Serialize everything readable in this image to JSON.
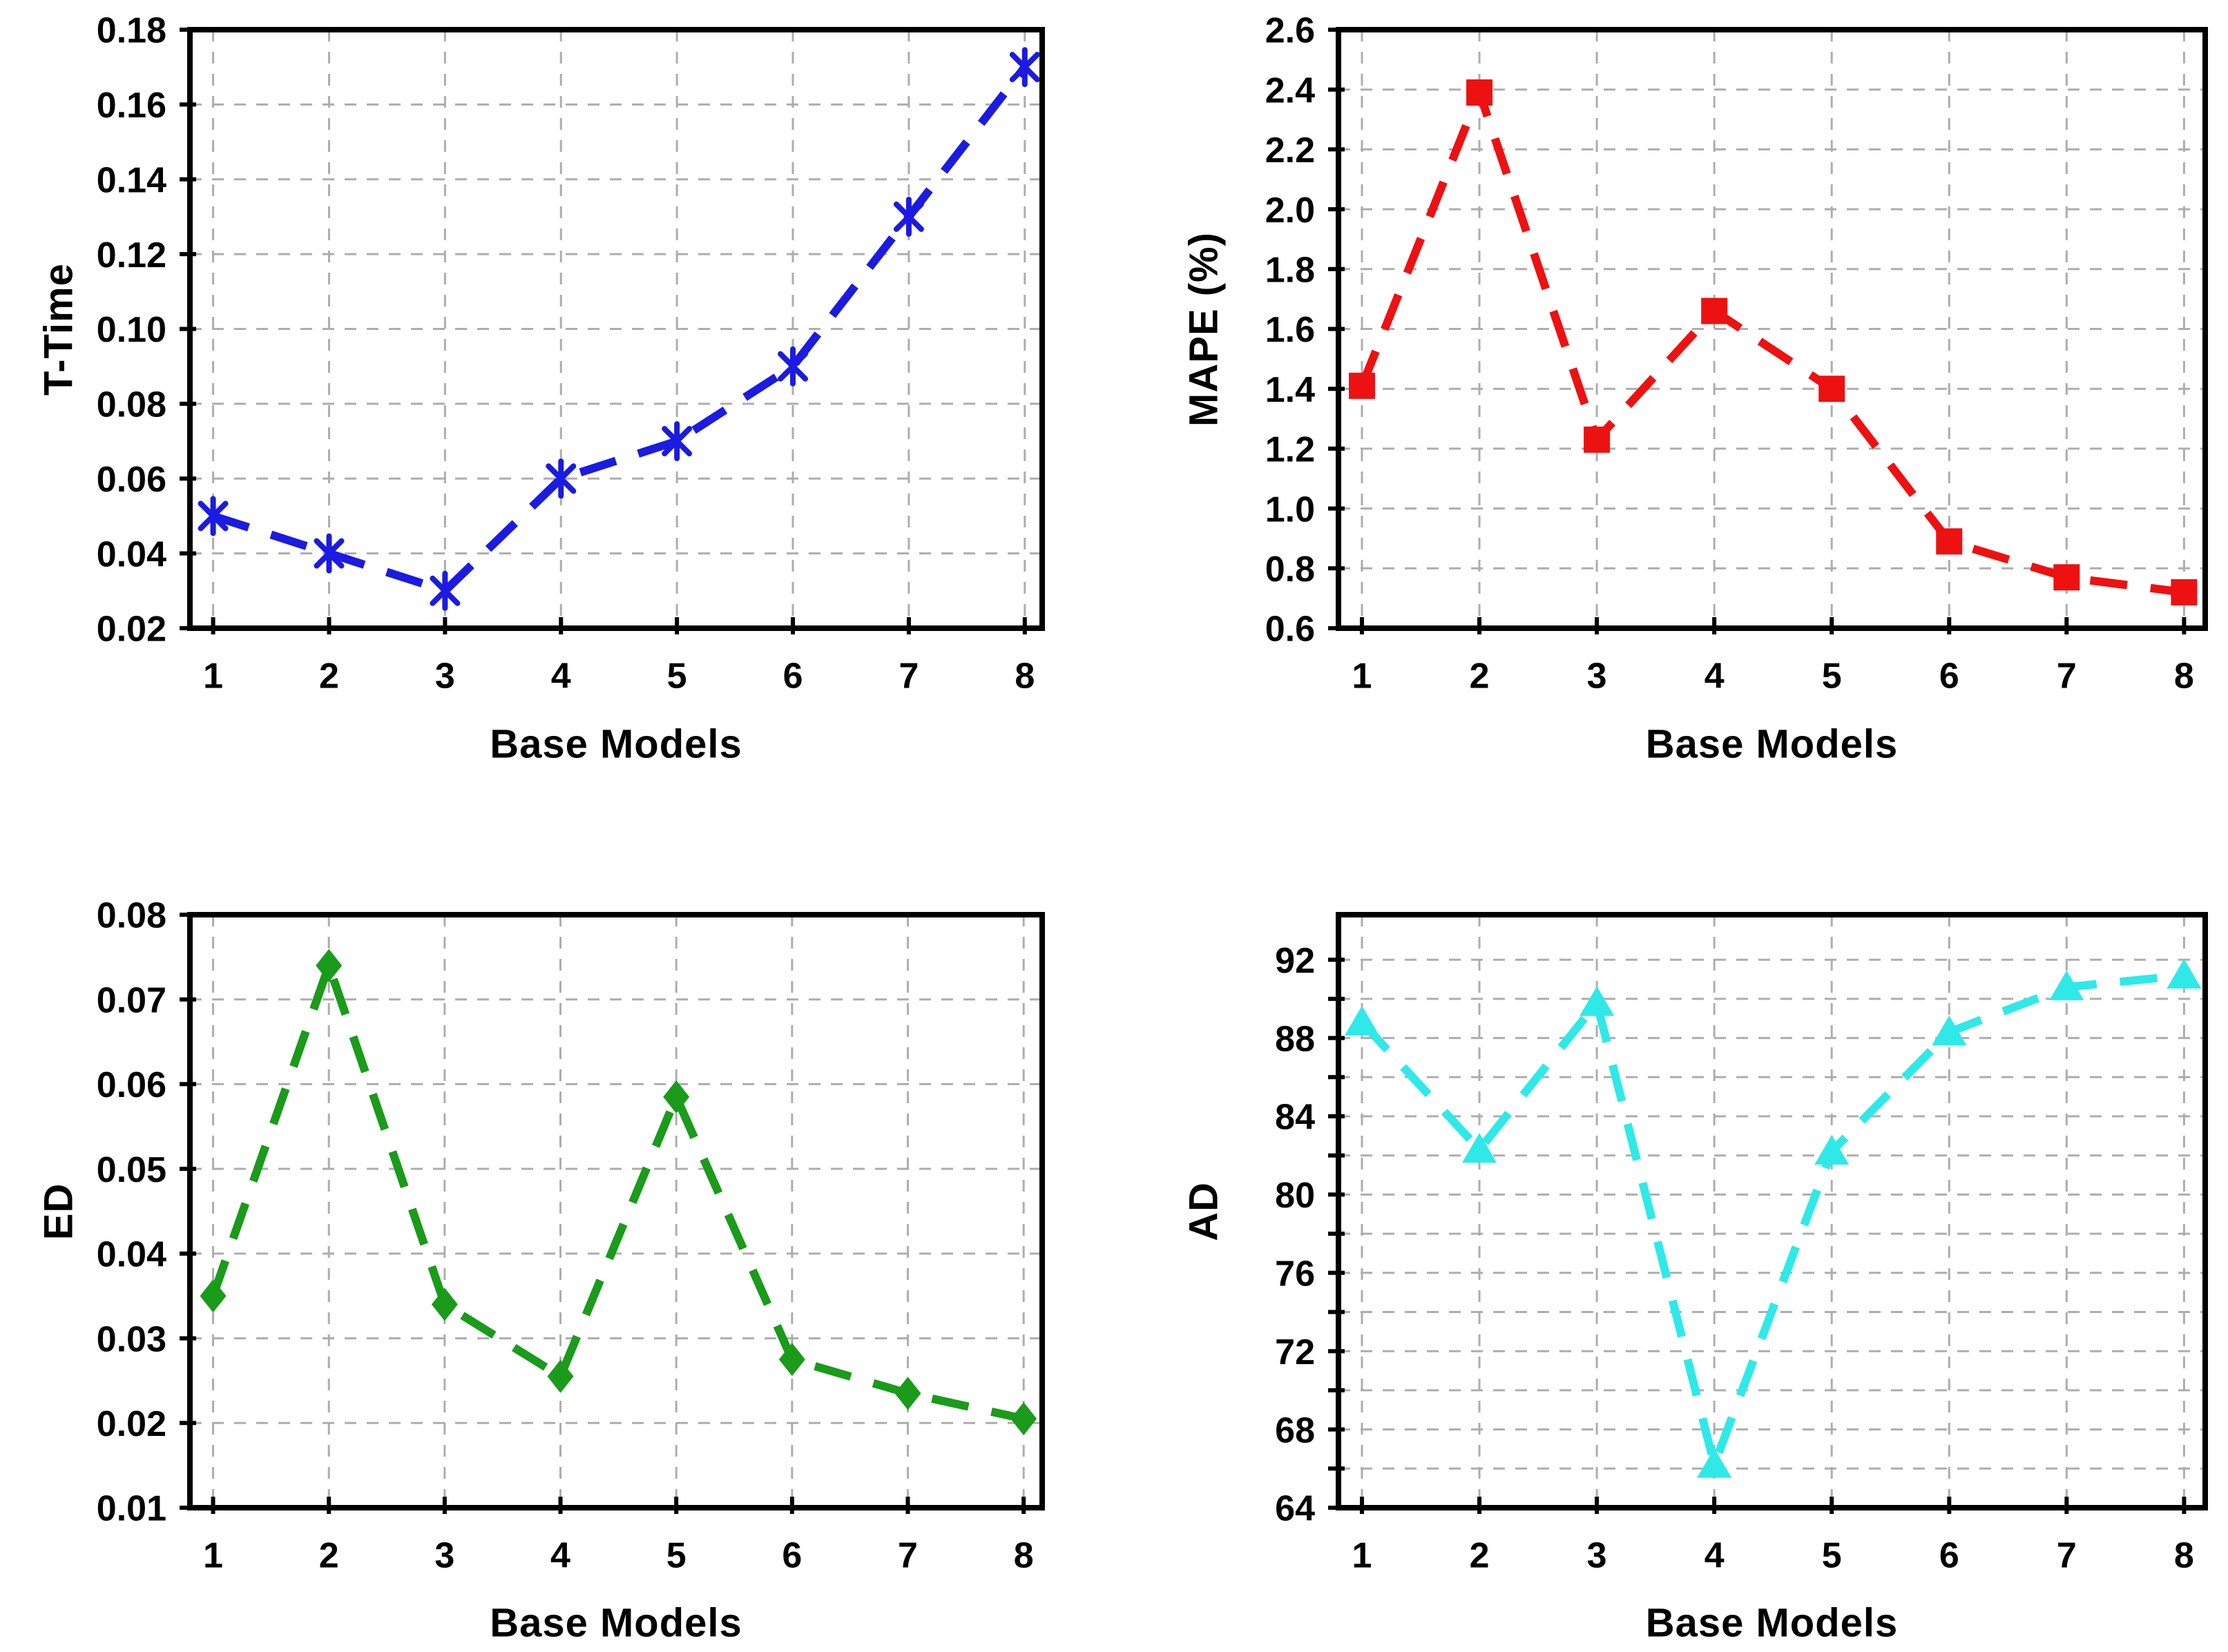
{
  "figure": {
    "background": "#ffffff",
    "grid_color": "#ADADAD",
    "box_color": "#000000",
    "text_color": "#000000"
  },
  "chart_data": [
    {
      "type": "line",
      "position": "top-left",
      "ylabel": "T-Time",
      "xlabel": "Base Models",
      "x": [
        1,
        2,
        3,
        4,
        5,
        6,
        7,
        8
      ],
      "values": [
        0.05,
        0.04,
        0.03,
        0.06,
        0.07,
        0.09,
        0.13,
        0.17
      ],
      "xlim": [
        0.8,
        8.15
      ],
      "ylim": [
        0.02,
        0.18
      ],
      "ytick_values": [
        0.02,
        0.04,
        0.06,
        0.08,
        0.1,
        0.12,
        0.14,
        0.16,
        0.18
      ],
      "ytick_labels": [
        "0.02",
        "0.04",
        "0.06",
        "0.08",
        "0.10",
        "0.12",
        "0.14",
        "0.16",
        "0.18"
      ],
      "grid_values": [
        0.04,
        0.06,
        0.08,
        0.1,
        0.12,
        0.14,
        0.16
      ],
      "xtick_labels": [
        "1",
        "2",
        "3",
        "4",
        "5",
        "6",
        "7",
        "8"
      ],
      "grid": true,
      "legend": null,
      "line_style": "dashed",
      "line_color": "#1B1BE1",
      "marker": "asterisk",
      "marker_color": "#1B1BE1"
    },
    {
      "type": "line",
      "position": "top-right",
      "ylabel": "MAPE (%)",
      "xlabel": "Base Models",
      "x": [
        1,
        2,
        3,
        4,
        5,
        6,
        7,
        8
      ],
      "values": [
        1.41,
        2.39,
        1.23,
        1.66,
        1.4,
        0.89,
        0.77,
        0.72
      ],
      "xlim": [
        0.8,
        8.18
      ],
      "ylim": [
        0.6,
        2.6
      ],
      "ytick_values": [
        0.6,
        0.8,
        1.0,
        1.2,
        1.4,
        1.6,
        1.8,
        2.0,
        2.2,
        2.4,
        2.6
      ],
      "ytick_labels": [
        "0.6",
        "0.8",
        "1.0",
        "1.2",
        "1.4",
        "1.6",
        "1.8",
        "2.0",
        "2.2",
        "2.4",
        "2.6"
      ],
      "grid_values": [
        0.8,
        1.0,
        1.2,
        1.4,
        1.6,
        1.8,
        2.0,
        2.2,
        2.4
      ],
      "xtick_labels": [
        "1",
        "2",
        "3",
        "4",
        "5",
        "6",
        "7",
        "8"
      ],
      "grid": true,
      "legend": null,
      "line_style": "dashed",
      "line_color": "#EE1111",
      "marker": "square",
      "marker_color": "#EE1111"
    },
    {
      "type": "line",
      "position": "bottom-left",
      "ylabel": "ED",
      "xlabel": "Base Models",
      "x": [
        1,
        2,
        3,
        4,
        5,
        6,
        7,
        8
      ],
      "values": [
        0.035,
        0.074,
        0.034,
        0.0255,
        0.0585,
        0.0275,
        0.0235,
        0.0205
      ],
      "xlim": [
        0.8,
        8.16
      ],
      "ylim": [
        0.01,
        0.08
      ],
      "ytick_values": [
        0.01,
        0.02,
        0.03,
        0.04,
        0.05,
        0.06,
        0.07,
        0.08
      ],
      "ytick_labels": [
        "0.01",
        "0.02",
        "0.03",
        "0.04",
        "0.05",
        "0.06",
        "0.07",
        "0.08"
      ],
      "grid_values": [
        0.02,
        0.03,
        0.04,
        0.05,
        0.06,
        0.07
      ],
      "xtick_labels": [
        "1",
        "2",
        "3",
        "4",
        "5",
        "6",
        "7",
        "8"
      ],
      "grid": true,
      "legend": null,
      "line_style": "dashed",
      "line_color": "#1A9B1A",
      "marker": "diamond",
      "marker_color": "#1A9B1A"
    },
    {
      "type": "line",
      "position": "bottom-right",
      "ylabel": "AD",
      "xlabel": "Base Models",
      "x": [
        1,
        2,
        3,
        4,
        5,
        6,
        7,
        8
      ],
      "values": [
        88.8,
        82.3,
        89.8,
        66.2,
        82.2,
        88.3,
        90.6,
        91.2
      ],
      "xlim": [
        0.8,
        8.18
      ],
      "ylim": [
        64,
        94.3
      ],
      "ytick_values": [
        64,
        68,
        72,
        76,
        80,
        84,
        88,
        92
      ],
      "ytick_labels": [
        "64",
        "68",
        "72",
        "76",
        "80",
        "84",
        "88",
        "92"
      ],
      "grid_values": [
        66,
        68,
        70,
        72,
        74,
        76,
        78,
        80,
        82,
        84,
        86,
        88,
        90,
        92
      ],
      "minor_tick_values": [
        66,
        70,
        74,
        78,
        82,
        86,
        90
      ],
      "xtick_labels": [
        "1",
        "2",
        "3",
        "4",
        "5",
        "6",
        "7",
        "8"
      ],
      "grid": true,
      "legend": null,
      "line_style": "dashed",
      "line_color": "#2FE9E9",
      "marker": "triangle",
      "marker_color": "#2FE9E9"
    }
  ]
}
